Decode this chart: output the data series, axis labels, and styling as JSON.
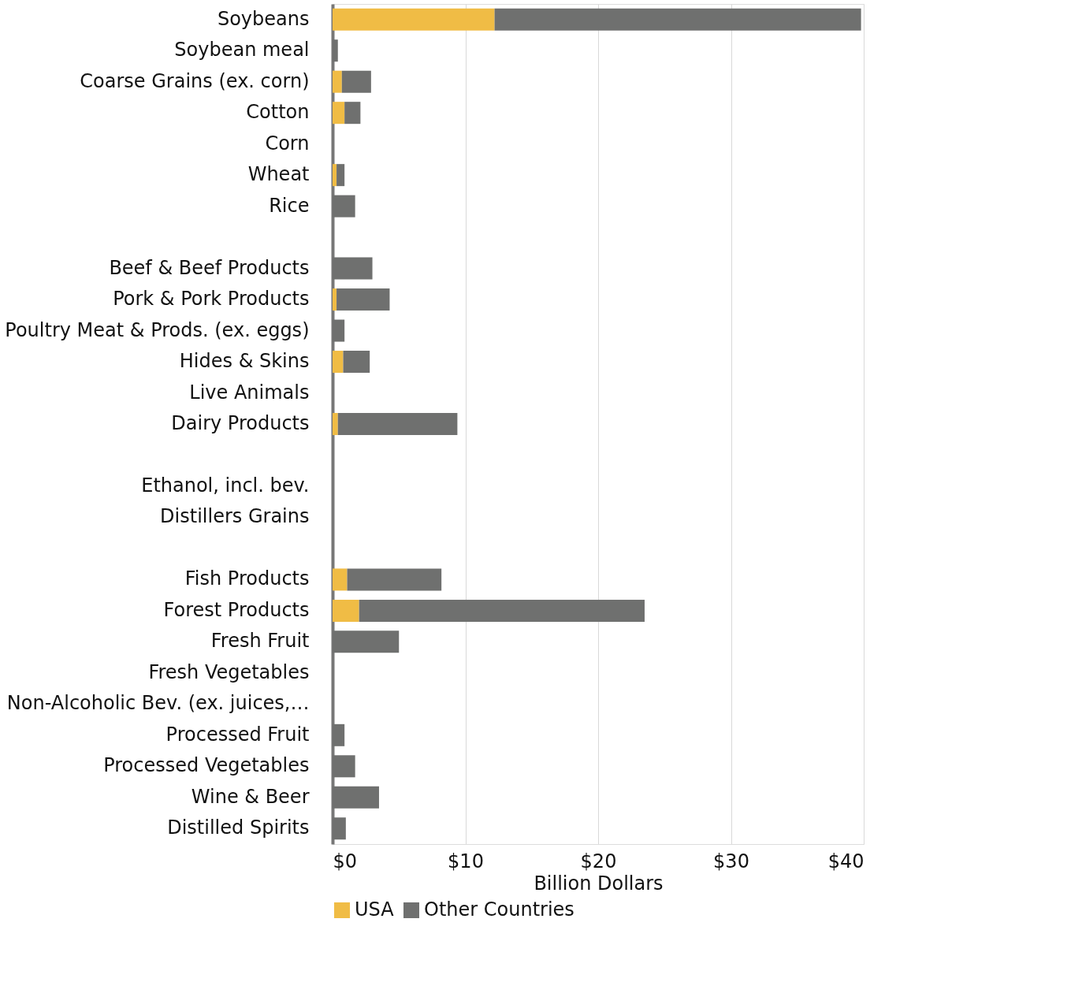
{
  "chart_data": {
    "type": "bar",
    "orientation": "horizontal",
    "stacked": true,
    "xlabel": "Billion Dollars",
    "categories": [
      "Soybeans",
      "Soybean meal",
      "Coarse Grains (ex. corn)",
      "Cotton",
      "Corn",
      "Wheat",
      "Rice",
      null,
      "Beef & Beef Products",
      "Pork & Pork Products",
      "Poultry Meat & Prods. (ex. eggs)",
      "Hides & Skins",
      "Live Animals",
      "Dairy Products",
      null,
      "Ethanol, incl. bev.",
      "Distillers Grains",
      null,
      "Fish Products",
      "Forest Products",
      "Fresh Fruit",
      "Fresh Vegetables",
      "Non-Alcoholic Bev. (ex. juices,…",
      "Processed Fruit",
      "Processed Vegetables",
      "Wine & Beer",
      "Distilled Spirits"
    ],
    "series": [
      {
        "name": "USA",
        "color": "#f0bc45",
        "values": [
          12.2,
          null,
          0.7,
          0.9,
          null,
          0.3,
          null,
          null,
          null,
          0.3,
          null,
          0.8,
          null,
          0.4,
          null,
          null,
          null,
          null,
          1.1,
          2.0,
          null,
          null,
          null,
          null,
          null,
          null,
          null
        ]
      },
      {
        "name": "Other Countries",
        "color": "#6f706f",
        "values": [
          27.6,
          0.4,
          2.2,
          1.2,
          null,
          0.6,
          1.7,
          null,
          3.0,
          4.0,
          0.9,
          2.0,
          null,
          9.0,
          null,
          null,
          null,
          null,
          7.1,
          21.5,
          5.0,
          null,
          null,
          0.9,
          1.7,
          3.5,
          1.0
        ]
      }
    ],
    "xlim": [
      0,
      40
    ],
    "xticks": [
      {
        "value": 0,
        "label": "$0"
      },
      {
        "value": 10,
        "label": "$10"
      },
      {
        "value": 20,
        "label": "$20"
      },
      {
        "value": 30,
        "label": "$30"
      },
      {
        "value": 40,
        "label": "$40"
      }
    ],
    "grid": "x",
    "legend": "bottom"
  }
}
